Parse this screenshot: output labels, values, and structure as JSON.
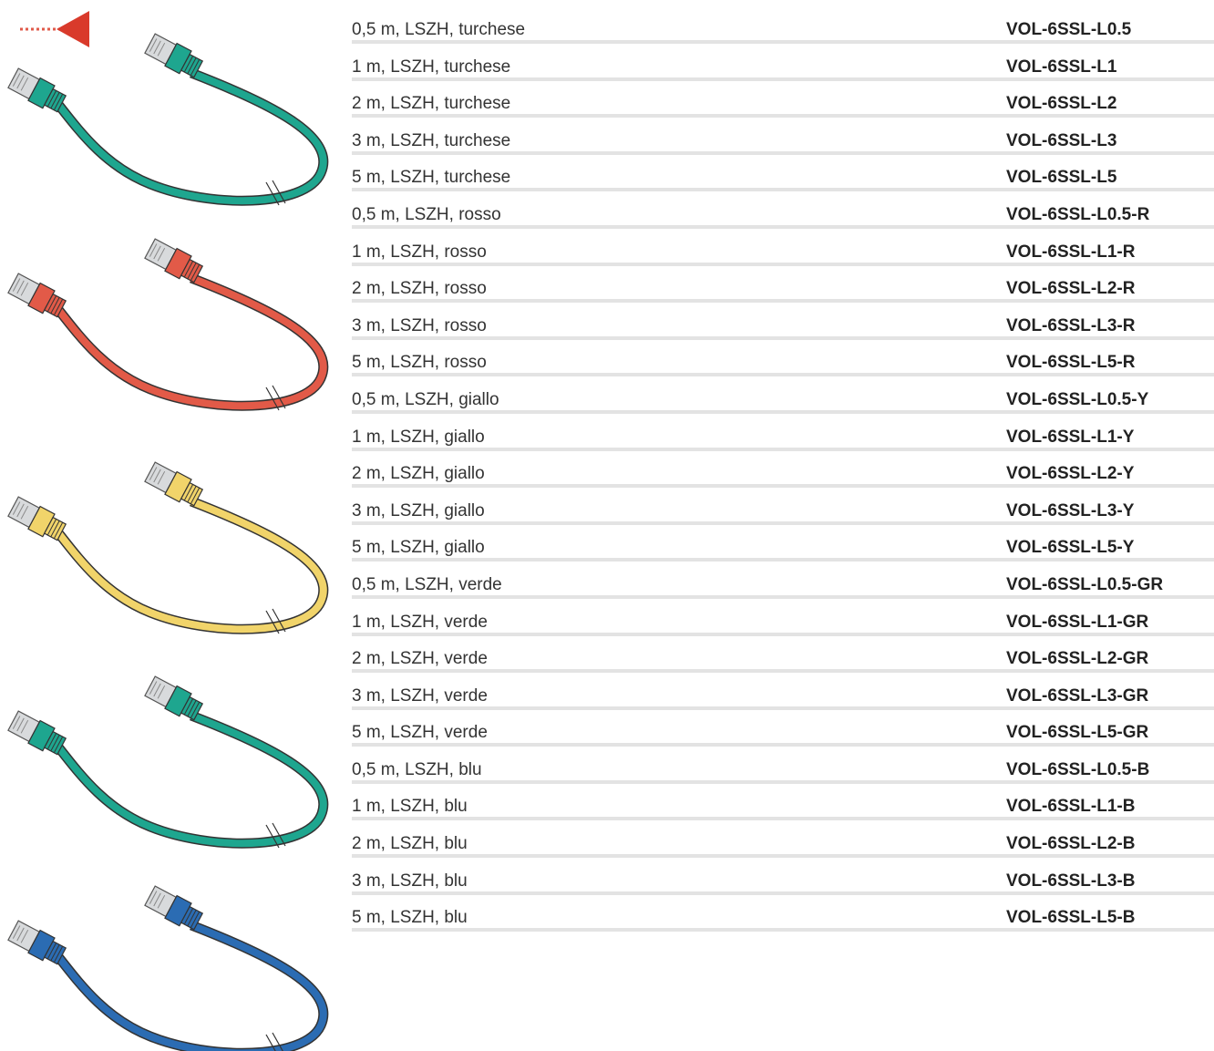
{
  "rows": [
    [
      "0,5 m, LSZH, turchese",
      "VOL-6SSL-L0.5"
    ],
    [
      "1 m, LSZH, turchese",
      "VOL-6SSL-L1"
    ],
    [
      "2 m, LSZH, turchese",
      "VOL-6SSL-L2"
    ],
    [
      "3 m, LSZH, turchese",
      "VOL-6SSL-L3"
    ],
    [
      "5 m, LSZH, turchese",
      "VOL-6SSL-L5"
    ],
    [
      "0,5 m, LSZH, rosso",
      "VOL-6SSL-L0.5-R"
    ],
    [
      "1 m, LSZH, rosso",
      "VOL-6SSL-L1-R"
    ],
    [
      "2 m, LSZH, rosso",
      "VOL-6SSL-L2-R"
    ],
    [
      "3 m, LSZH, rosso",
      "VOL-6SSL-L3-R"
    ],
    [
      "5 m, LSZH, rosso",
      "VOL-6SSL-L5-R"
    ],
    [
      "0,5 m, LSZH, giallo",
      "VOL-6SSL-L0.5-Y"
    ],
    [
      "1 m, LSZH, giallo",
      "VOL-6SSL-L1-Y"
    ],
    [
      "2 m, LSZH, giallo",
      "VOL-6SSL-L2-Y"
    ],
    [
      "3 m, LSZH, giallo",
      "VOL-6SSL-L3-Y"
    ],
    [
      "5 m, LSZH, giallo",
      "VOL-6SSL-L5-Y"
    ],
    [
      "0,5 m, LSZH, verde",
      "VOL-6SSL-L0.5-GR"
    ],
    [
      "1 m, LSZH, verde",
      "VOL-6SSL-L1-GR"
    ],
    [
      "2 m, LSZH, verde",
      "VOL-6SSL-L2-GR"
    ],
    [
      "3 m, LSZH, verde",
      "VOL-6SSL-L3-GR"
    ],
    [
      "5 m, LSZH, verde",
      "VOL-6SSL-L5-GR"
    ],
    [
      "0,5 m, LSZH, blu",
      "VOL-6SSL-L0.5-B"
    ],
    [
      "1 m, LSZH, blu",
      "VOL-6SSL-L1-B"
    ],
    [
      "2 m, LSZH, blu",
      "VOL-6SSL-L2-B"
    ],
    [
      "3 m, LSZH, blu",
      "VOL-6SSL-L3-B"
    ],
    [
      "5 m, LSZH, blu",
      "VOL-6SSL-L5-B"
    ]
  ]
}
